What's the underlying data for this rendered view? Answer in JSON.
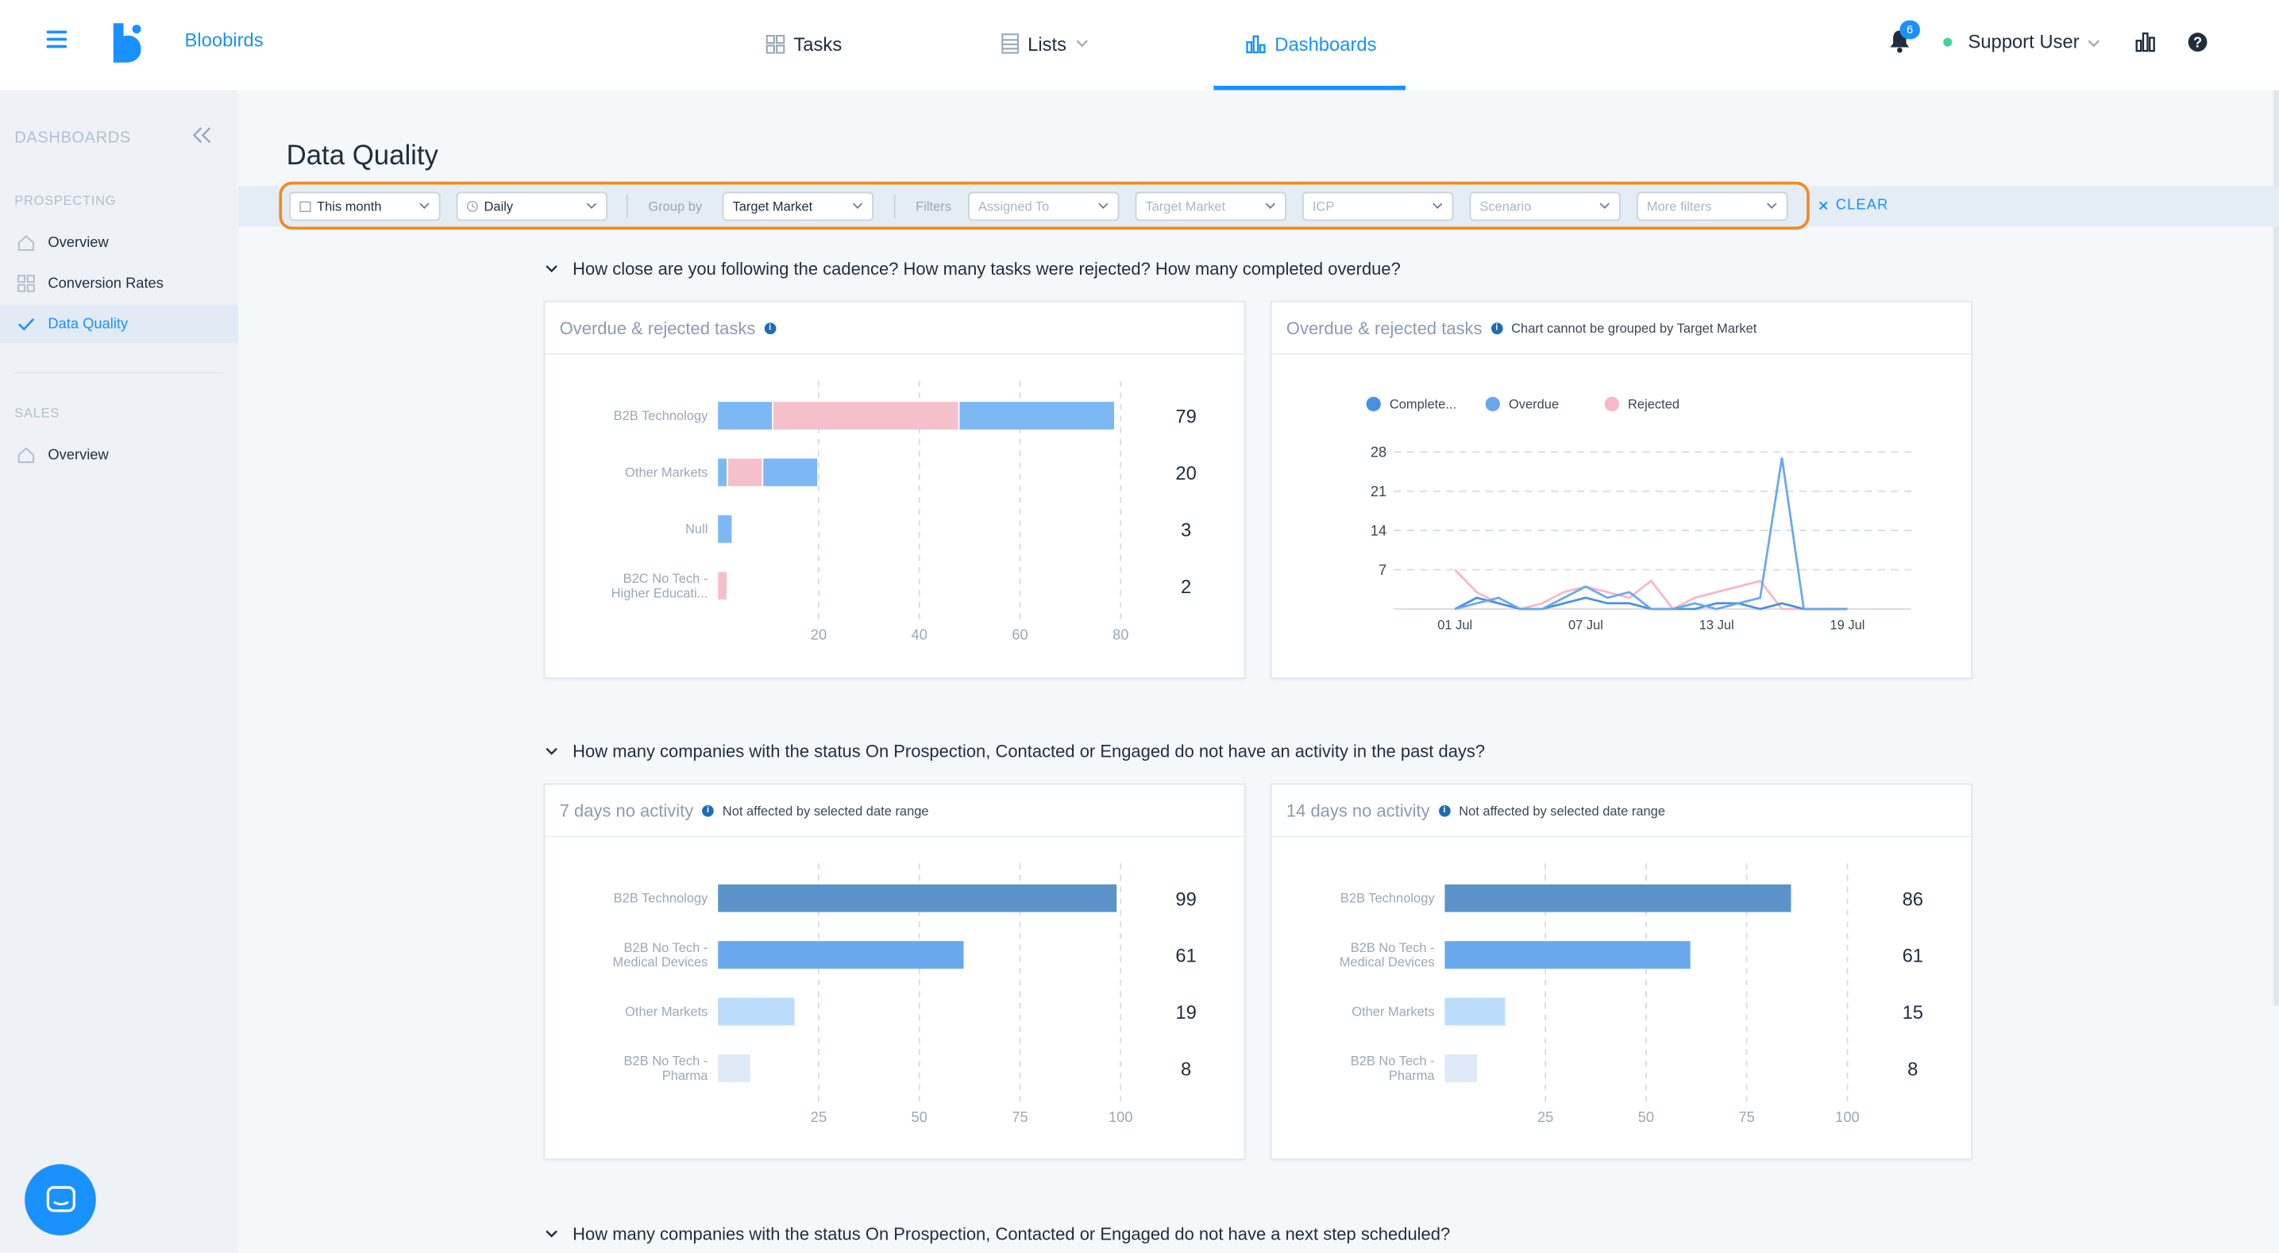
{
  "app": {
    "brand": "Bloobirds",
    "nav": {
      "tasks": "Tasks",
      "lists": "Lists",
      "dashboards": "Dashboards"
    },
    "notifications_count": "6",
    "user": "Support User"
  },
  "sidebar": {
    "header": "DASHBOARDS",
    "sections": [
      {
        "title": "PROSPECTING",
        "items": [
          {
            "label": "Overview",
            "icon": "home-icon",
            "active": false
          },
          {
            "label": "Conversion Rates",
            "icon": "grid-icon",
            "active": false
          },
          {
            "label": "Data Quality",
            "icon": "check-icon",
            "active": true
          }
        ]
      },
      {
        "title": "SALES",
        "items": [
          {
            "label": "Overview",
            "icon": "home-icon",
            "active": false
          }
        ]
      }
    ]
  },
  "page": {
    "title": "Data Quality"
  },
  "filters": {
    "date_range": "This month",
    "granularity": "Daily",
    "group_by_label": "Group by",
    "group_by_value": "Target Market",
    "filters_label": "Filters",
    "assigned_to": "Assigned To",
    "target_market": "Target Market",
    "icp": "ICP",
    "scenario": "Scenario",
    "more_filters": "More filters",
    "clear": "CLEAR"
  },
  "questions": [
    "How close are you following the cadence? How many tasks were rejected? How many completed overdue?",
    "How many companies with the status On Prospection, Contacted or Engaged do not have an activity in the past days?",
    "How many companies with the status On Prospection, Contacted or Engaged do not have a next step scheduled?"
  ],
  "cards": {
    "overdue_bar": {
      "title": "Overdue & rejected tasks"
    },
    "overdue_line": {
      "title": "Overdue & rejected tasks",
      "note": "Chart cannot be grouped by Target Market"
    },
    "seven_days": {
      "title": "7 days no activity",
      "note": "Not affected by selected date range"
    },
    "fourteen_days": {
      "title": "14 days no activity",
      "note": "Not affected by selected date range"
    }
  },
  "colors": {
    "accent": "#1991ff",
    "completed": "#4a90e2",
    "overdue": "#7db8f5",
    "rejected": "#f4c0cc",
    "highlight": "#f08a24"
  },
  "chart_data": [
    {
      "id": "overdue_bar",
      "type": "bar",
      "orientation": "horizontal",
      "stacked": true,
      "categories": [
        "B2B Technology",
        "Other Markets",
        "Null",
        "B2C No Tech - Higher Educati..."
      ],
      "series": [
        {
          "values": [
            11,
            2,
            3,
            0
          ],
          "color": "#7db8f5"
        },
        {
          "values": [
            37,
            7,
            0,
            2
          ],
          "color": "#f4c0cc"
        },
        {
          "values": [
            31,
            11,
            0,
            0
          ],
          "color": "#7db8f5"
        }
      ],
      "totals": [
        "79",
        "20",
        "3",
        "2"
      ],
      "xticks": [
        "20",
        "40",
        "60",
        "80"
      ],
      "xlim": [
        0,
        80
      ]
    },
    {
      "id": "overdue_line",
      "type": "line",
      "legend": [
        "Complete...",
        "Overdue",
        "Rejected"
      ],
      "legend_position": "top",
      "x": [
        "01 Jul",
        "02 Jul",
        "03 Jul",
        "04 Jul",
        "05 Jul",
        "06 Jul",
        "07 Jul",
        "08 Jul",
        "09 Jul",
        "10 Jul",
        "11 Jul",
        "12 Jul",
        "13 Jul",
        "14 Jul",
        "15 Jul",
        "16 Jul",
        "17 Jul",
        "18 Jul",
        "19 Jul"
      ],
      "xticks": [
        "01 Jul",
        "07 Jul",
        "13 Jul",
        "19 Jul"
      ],
      "yticks": [
        "7",
        "14",
        "21",
        "28"
      ],
      "ylim": [
        0,
        28
      ],
      "series": [
        {
          "name": "Complete...",
          "color": "#4a90e2",
          "values": [
            0,
            2,
            1,
            0,
            0,
            1,
            2,
            1,
            1,
            0,
            0,
            0,
            1,
            1,
            0,
            1,
            0,
            0,
            0
          ]
        },
        {
          "name": "Overdue",
          "color": "#6aa8ee",
          "values": [
            0,
            1,
            2,
            0,
            0,
            2,
            4,
            2,
            3,
            0,
            0,
            1,
            0,
            1,
            2,
            27,
            0,
            0,
            0
          ]
        },
        {
          "name": "Rejected",
          "color": "#f4b8c6",
          "values": [
            7,
            3,
            1,
            0,
            1,
            3,
            4,
            3,
            2,
            5,
            0,
            2,
            3,
            4,
            5,
            0,
            0,
            0,
            0
          ]
        }
      ]
    },
    {
      "id": "seven_days",
      "type": "bar",
      "orientation": "horizontal",
      "categories": [
        "B2B Technology",
        "B2B No Tech - Medical Devices",
        "Other Markets",
        "B2B No Tech - Pharma"
      ],
      "values": [
        "99",
        "61",
        "19",
        "8"
      ],
      "colors": [
        "#5b92c9",
        "#6aa8ee",
        "#bcdcfb",
        "#dde9f7"
      ],
      "xticks": [
        "25",
        "50",
        "75",
        "100"
      ],
      "xlim": [
        0,
        100
      ]
    },
    {
      "id": "fourteen_days",
      "type": "bar",
      "orientation": "horizontal",
      "categories": [
        "B2B Technology",
        "B2B No Tech - Medical Devices",
        "Other Markets",
        "B2B No Tech - Pharma"
      ],
      "values": [
        "86",
        "61",
        "15",
        "8"
      ],
      "colors": [
        "#5b92c9",
        "#6aa8ee",
        "#bcdcfb",
        "#dde9f7"
      ],
      "xticks": [
        "25",
        "50",
        "75",
        "100"
      ],
      "xlim": [
        0,
        100
      ]
    }
  ]
}
